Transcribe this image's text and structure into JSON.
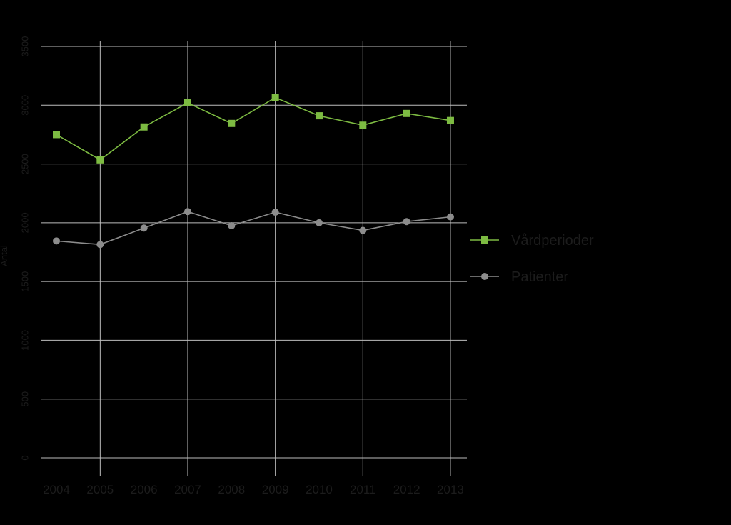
{
  "chart_data": {
    "type": "line",
    "title": "",
    "xlabel": "",
    "ylabel": "Antal",
    "x": [
      "2004",
      "2005",
      "2006",
      "2007",
      "2008",
      "2009",
      "2010",
      "2011",
      "2012",
      "2013"
    ],
    "yticks": [
      0,
      500,
      1000,
      1500,
      2000,
      2500,
      3000,
      3500
    ],
    "ylim": [
      0,
      3500
    ],
    "grid": true,
    "legend_position": "right",
    "series": [
      {
        "name": "Vårdperioder",
        "color": "#7dbb42",
        "marker": "square",
        "values": [
          2750,
          2535,
          2815,
          3020,
          2845,
          3065,
          2910,
          2830,
          2930,
          2870
        ]
      },
      {
        "name": "Patienter",
        "color": "#8c8c8c",
        "marker": "circle",
        "values": [
          1845,
          1815,
          1955,
          2095,
          1975,
          2090,
          2000,
          1935,
          2010,
          2050
        ]
      }
    ]
  },
  "colors": {
    "background": "#000000",
    "grid": "#bdbdbd",
    "text": "#1c1c1c"
  }
}
